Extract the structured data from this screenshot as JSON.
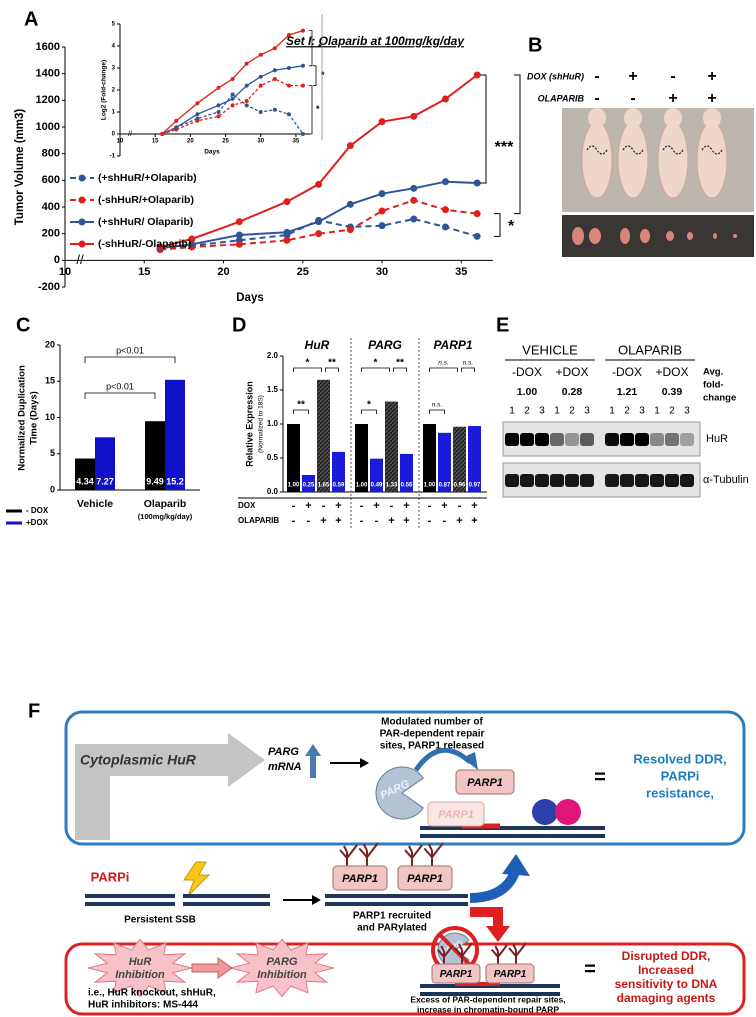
{
  "panel_labels": [
    "A",
    "B",
    "C",
    "D",
    "E",
    "F"
  ],
  "chart_data": [
    {
      "type": "line",
      "title": "Set I: Olaparib at 100mg/kg/day",
      "x_label": "Days",
      "y_label": "Tumor Volume (mm3)",
      "axis_break": "//",
      "x": [
        16,
        18,
        21,
        24,
        26,
        28,
        30,
        32,
        34,
        36
      ],
      "xlim": [
        10,
        37
      ],
      "xticks": [
        10,
        15,
        20,
        25,
        30,
        35
      ],
      "ylim": [
        -200,
        1600
      ],
      "yticks": [
        -200,
        0,
        200,
        400,
        600,
        800,
        1000,
        1200,
        1400,
        1600
      ],
      "series": [
        {
          "name": "(+shHuR/+Olaparib)",
          "color": "#2e5597",
          "dash": true,
          "values": [
            90,
            110,
            150,
            190,
            300,
            250,
            260,
            310,
            250,
            180
          ]
        },
        {
          "name": "(-shHuR/+Olaparib)",
          "color": "#e0201b",
          "dash": true,
          "values": [
            80,
            100,
            120,
            150,
            200,
            230,
            370,
            450,
            380,
            350
          ]
        },
        {
          "name": "(+shHuR/ Olaparib)",
          "color": "#2e5597",
          "dash": false,
          "values": [
            90,
            120,
            190,
            210,
            290,
            420,
            500,
            540,
            590,
            580
          ]
        },
        {
          "name": "(-shHuR/-Olaparib)",
          "color": "#e0201b",
          "dash": false,
          "values": [
            100,
            160,
            290,
            440,
            570,
            860,
            1040,
            1080,
            1210,
            1390
          ]
        }
      ],
      "annotations": [
        "***",
        "*"
      ]
    },
    {
      "type": "line",
      "x_label": "Days",
      "y_label": "Log2 (Fold-change)",
      "axis_break": "//",
      "x": [
        16,
        18,
        21,
        24,
        26,
        28,
        30,
        32,
        34,
        36
      ],
      "xlim": [
        10,
        37
      ],
      "xticks": [
        10,
        15,
        20,
        25,
        30,
        35
      ],
      "ylim": [
        -1,
        5
      ],
      "yticks": [
        -1,
        0,
        1,
        2,
        3,
        4,
        5
      ],
      "series": [
        {
          "color": "#2e5597",
          "dash": true,
          "values": [
            0,
            0.3,
            0.7,
            1.0,
            1.8,
            1.3,
            1.0,
            1.1,
            0.9,
            0
          ]
        },
        {
          "color": "#e0201b",
          "dash": true,
          "values": [
            0,
            0.2,
            0.6,
            0.8,
            1.3,
            1.5,
            2.2,
            2.5,
            2.2,
            2.2
          ]
        },
        {
          "color": "#2e5597",
          "dash": false,
          "values": [
            0,
            0.3,
            0.9,
            1.3,
            1.6,
            2.2,
            2.6,
            2.9,
            3.0,
            3.1
          ]
        },
        {
          "color": "#e0201b",
          "dash": false,
          "values": [
            0,
            0.6,
            1.4,
            2.1,
            2.5,
            3.2,
            3.6,
            3.9,
            4.5,
            4.7
          ]
        }
      ],
      "annotations": [
        "*",
        "*",
        "*"
      ]
    },
    {
      "type": "bar",
      "y_label": [
        "Normalized Duplication",
        "Time (Days)"
      ],
      "categories": [
        "Vehicle",
        "Olaparib"
      ],
      "dose_label": "(100mg/kg/day)",
      "ylim": [
        0,
        20
      ],
      "yticks": [
        0,
        5,
        10,
        15,
        20
      ],
      "series": [
        {
          "name": "- DOX",
          "color": "#000000",
          "values": [
            4.34,
            9.49
          ]
        },
        {
          "name": "+DOX",
          "color": "#1010c8",
          "values": [
            7.27,
            15.2
          ]
        }
      ],
      "annotations": [
        "p<0.01",
        "p<0.01"
      ]
    },
    {
      "type": "bar",
      "y_label": "Relative Expression",
      "y_sublabel": "(Normalized to 18S)",
      "categories": [
        "HuR",
        "PARG",
        "PARP1"
      ],
      "ylim": [
        0,
        2
      ],
      "yticks": [
        {
          "value": 0,
          "label": "0.0"
        },
        0.5,
        {
          "value": 1,
          "label": "1.0"
        },
        1.5,
        {
          "value": 2,
          "label": "2.0"
        }
      ],
      "series": [
        {
          "color": "#000000",
          "values": [
            1,
            1,
            1
          ],
          "value_labels": [
            "1.00",
            "1.00",
            "1.00"
          ]
        },
        {
          "color": "#1a1adb",
          "values": [
            0.25,
            0.49,
            0.87
          ],
          "value_labels": [
            "0.25",
            "0.49",
            "0.87"
          ]
        },
        {
          "color": "#4a4a4a",
          "pattern": "hatch",
          "values": [
            1.65,
            1.33,
            0.96
          ],
          "value_labels": [
            "1.65",
            "1.33",
            "0.96"
          ]
        },
        {
          "color": "#1a1adb",
          "values": [
            0.59,
            0.56,
            0.97
          ],
          "value_labels": [
            "0.59",
            "0.56",
            "0.97"
          ]
        }
      ],
      "conditions": [
        {
          "name": "DOX",
          "signs": [
            "-",
            "+",
            "-",
            "+",
            "-",
            "+",
            "-",
            "+",
            "-",
            "+",
            "-",
            "+"
          ]
        },
        {
          "name": "OLAPARIB",
          "signs": [
            "-",
            "-",
            "+",
            "+",
            "-",
            "-",
            "+",
            "+",
            "-",
            "-",
            "+",
            "+"
          ]
        }
      ],
      "significance": [
        [
          "**",
          "*",
          "**"
        ],
        [
          "*",
          "*",
          "**"
        ],
        [
          "n.s.",
          "n.s.",
          "n.s."
        ]
      ]
    }
  ],
  "photo_panel": {
    "rows": [
      {
        "label": "DOX (shHuR)",
        "signs": [
          "-",
          "+",
          "-",
          "+"
        ]
      },
      {
        "label": "OLAPARIB",
        "signs": [
          "-",
          "-",
          "+",
          "+"
        ]
      }
    ]
  },
  "blot": {
    "conditions": [
      "VEHICLE",
      "OLAPARIB"
    ],
    "dox": [
      "-DOX",
      "+DOX",
      "-DOX",
      "+DOX"
    ],
    "fold_change": [
      "1.00",
      "0.28",
      "1.21",
      "0.39"
    ],
    "fold_change_label": [
      "Avg.",
      "fold-",
      "change"
    ],
    "lanes": [
      "1",
      "2",
      "3",
      "1",
      "2",
      "3",
      "1",
      "2",
      "3",
      "1",
      "2",
      "3"
    ],
    "proteins": [
      "HuR",
      "α-Tubulin"
    ]
  },
  "diagram": {
    "top": {
      "source": "Cytoplasmic  HuR",
      "target": [
        "PARG",
        "mRNA"
      ],
      "note": [
        "Modulated number of",
        "PAR-dependent repair",
        "sites, PARP1 released"
      ],
      "enzyme": "PARG",
      "released": "PARP1",
      "bound": "PARP1",
      "equals": "=",
      "outcome": [
        "Resolved DDR,",
        "PARPi",
        "resistance,"
      ]
    },
    "middle": {
      "drug": "PARPi",
      "lesion": "Persistent SSB",
      "proteins": [
        "PARP1",
        "PARP1"
      ],
      "note": [
        "PARP1 recruited",
        "and PARylated"
      ]
    },
    "bottom": {
      "steps": [
        [
          "HuR",
          "Inhibition"
        ],
        [
          "PARG",
          "Inhibition"
        ]
      ],
      "examples": [
        "i.e., HuR knockout, shHuR,",
        "HuR inhibitors: MS-444"
      ],
      "enzyme": "PARG",
      "proteins": [
        "PARP1",
        "PARP1"
      ],
      "equals": "=",
      "note": [
        "Excess of PAR-dependent repair sites,",
        "increase in chromatin-bound PARP"
      ],
      "outcome": [
        "Disrupted DDR,",
        "Increased",
        "sensitivity to DNA",
        "damaging agents"
      ]
    }
  }
}
